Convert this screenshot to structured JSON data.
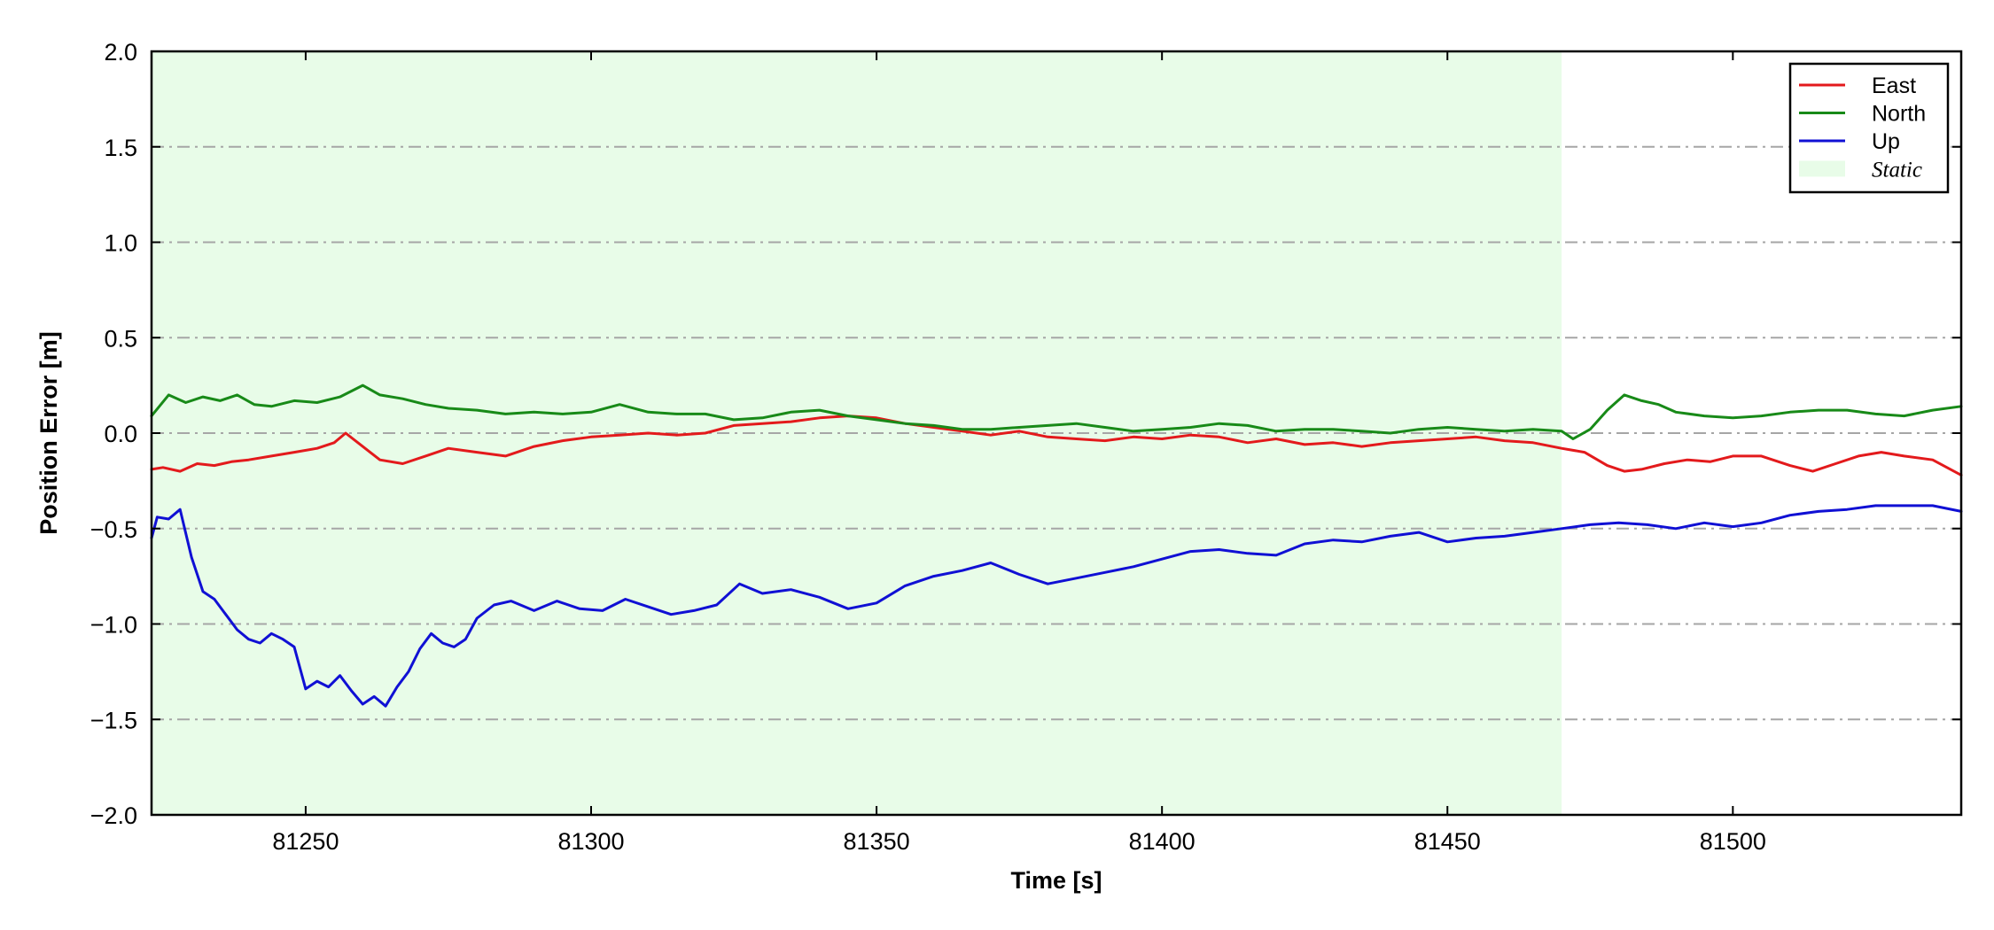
{
  "chart_data": {
    "type": "line",
    "xlabel": "Time [s]",
    "ylabel": "Position Error [m]",
    "xlim": [
      81223,
      81540
    ],
    "ylim": [
      -2.0,
      2.0
    ],
    "x_ticks": [
      81250,
      81300,
      81350,
      81400,
      81450,
      81500
    ],
    "x_tick_labels": [
      "81250",
      "81300",
      "81350",
      "81400",
      "81450",
      "81500"
    ],
    "y_ticks": [
      -2.0,
      -1.5,
      -1.0,
      -0.5,
      0.0,
      0.5,
      1.0,
      1.5,
      2.0
    ],
    "y_tick_labels": [
      "−2.0",
      "−1.5",
      "−1.0",
      "−0.5",
      "0.0",
      "0.5",
      "1.0",
      "1.5",
      "2.0"
    ],
    "grid": {
      "axis": "y",
      "style": "dash-dot",
      "color": "#a6a6a6"
    },
    "legend_placement": "top-right",
    "shaded_region": {
      "label": "Static",
      "x_start": 81223,
      "x_end": 81470,
      "color": "#e8fce8"
    },
    "series": [
      {
        "name": "East",
        "color": "#e31a1c",
        "x": [
          81223,
          81225,
          81228,
          81231,
          81234,
          81237,
          81240,
          81244,
          81248,
          81252,
          81255,
          81257,
          81260,
          81263,
          81267,
          81271,
          81275,
          81280,
          81285,
          81290,
          81295,
          81300,
          81305,
          81310,
          81315,
          81320,
          81325,
          81330,
          81335,
          81340,
          81345,
          81350,
          81355,
          81360,
          81365,
          81370,
          81375,
          81380,
          81385,
          81390,
          81395,
          81400,
          81405,
          81410,
          81415,
          81420,
          81425,
          81430,
          81435,
          81440,
          81445,
          81450,
          81455,
          81460,
          81465,
          81470,
          81474,
          81478,
          81481,
          81484,
          81488,
          81492,
          81496,
          81500,
          81505,
          81510,
          81514,
          81518,
          81522,
          81526,
          81530,
          81535,
          81540
        ],
        "y": [
          -0.19,
          -0.18,
          -0.2,
          -0.16,
          -0.17,
          -0.15,
          -0.14,
          -0.12,
          -0.1,
          -0.08,
          -0.05,
          0.0,
          -0.07,
          -0.14,
          -0.16,
          -0.12,
          -0.08,
          -0.1,
          -0.12,
          -0.07,
          -0.04,
          -0.02,
          -0.01,
          0.0,
          -0.01,
          0.0,
          0.04,
          0.05,
          0.06,
          0.08,
          0.09,
          0.08,
          0.05,
          0.03,
          0.01,
          -0.01,
          0.01,
          -0.02,
          -0.03,
          -0.04,
          -0.02,
          -0.03,
          -0.01,
          -0.02,
          -0.05,
          -0.03,
          -0.06,
          -0.05,
          -0.07,
          -0.05,
          -0.04,
          -0.03,
          -0.02,
          -0.04,
          -0.05,
          -0.08,
          -0.1,
          -0.17,
          -0.2,
          -0.19,
          -0.16,
          -0.14,
          -0.15,
          -0.12,
          -0.12,
          -0.17,
          -0.2,
          -0.16,
          -0.12,
          -0.1,
          -0.12,
          -0.14,
          -0.22
        ]
      },
      {
        "name": "North",
        "color": "#188a18",
        "x": [
          81223,
          81226,
          81229,
          81232,
          81235,
          81238,
          81241,
          81244,
          81248,
          81252,
          81256,
          81260,
          81263,
          81267,
          81271,
          81275,
          81280,
          81285,
          81290,
          81295,
          81300,
          81305,
          81310,
          81315,
          81320,
          81325,
          81330,
          81335,
          81340,
          81345,
          81350,
          81355,
          81360,
          81365,
          81370,
          81375,
          81380,
          81385,
          81390,
          81395,
          81400,
          81405,
          81410,
          81415,
          81420,
          81425,
          81430,
          81435,
          81440,
          81445,
          81450,
          81455,
          81460,
          81465,
          81470,
          81472,
          81475,
          81478,
          81481,
          81484,
          81487,
          81490,
          81495,
          81500,
          81505,
          81510,
          81515,
          81520,
          81525,
          81530,
          81535,
          81540
        ],
        "y": [
          0.09,
          0.2,
          0.16,
          0.19,
          0.17,
          0.2,
          0.15,
          0.14,
          0.17,
          0.16,
          0.19,
          0.25,
          0.2,
          0.18,
          0.15,
          0.13,
          0.12,
          0.1,
          0.11,
          0.1,
          0.11,
          0.15,
          0.11,
          0.1,
          0.1,
          0.07,
          0.08,
          0.11,
          0.12,
          0.09,
          0.07,
          0.05,
          0.04,
          0.02,
          0.02,
          0.03,
          0.04,
          0.05,
          0.03,
          0.01,
          0.02,
          0.03,
          0.05,
          0.04,
          0.01,
          0.02,
          0.02,
          0.01,
          0.0,
          0.02,
          0.03,
          0.02,
          0.01,
          0.02,
          0.01,
          -0.03,
          0.02,
          0.12,
          0.2,
          0.17,
          0.15,
          0.11,
          0.09,
          0.08,
          0.09,
          0.11,
          0.12,
          0.12,
          0.1,
          0.09,
          0.12,
          0.14
        ]
      },
      {
        "name": "Up",
        "color": "#1010d4",
        "x": [
          81223,
          81224,
          81226,
          81228,
          81230,
          81232,
          81234,
          81236,
          81238,
          81240,
          81242,
          81244,
          81246,
          81248,
          81250,
          81252,
          81254,
          81256,
          81258,
          81260,
          81262,
          81264,
          81266,
          81268,
          81270,
          81272,
          81274,
          81276,
          81278,
          81280,
          81283,
          81286,
          81290,
          81294,
          81298,
          81302,
          81306,
          81310,
          81314,
          81318,
          81322,
          81326,
          81330,
          81335,
          81340,
          81345,
          81350,
          81355,
          81360,
          81365,
          81370,
          81375,
          81380,
          81385,
          81390,
          81395,
          81400,
          81405,
          81410,
          81415,
          81420,
          81425,
          81430,
          81435,
          81440,
          81445,
          81450,
          81455,
          81460,
          81465,
          81470,
          81475,
          81480,
          81485,
          81490,
          81495,
          81500,
          81505,
          81510,
          81515,
          81520,
          81525,
          81530,
          81535,
          81540
        ],
        "y": [
          -0.55,
          -0.44,
          -0.45,
          -0.4,
          -0.65,
          -0.83,
          -0.87,
          -0.95,
          -1.03,
          -1.08,
          -1.1,
          -1.05,
          -1.08,
          -1.12,
          -1.34,
          -1.3,
          -1.33,
          -1.27,
          -1.35,
          -1.42,
          -1.38,
          -1.43,
          -1.33,
          -1.25,
          -1.13,
          -1.05,
          -1.1,
          -1.12,
          -1.08,
          -0.97,
          -0.9,
          -0.88,
          -0.93,
          -0.88,
          -0.92,
          -0.93,
          -0.87,
          -0.91,
          -0.95,
          -0.93,
          -0.9,
          -0.79,
          -0.84,
          -0.82,
          -0.86,
          -0.92,
          -0.89,
          -0.8,
          -0.75,
          -0.72,
          -0.68,
          -0.74,
          -0.79,
          -0.76,
          -0.73,
          -0.7,
          -0.66,
          -0.62,
          -0.61,
          -0.63,
          -0.64,
          -0.58,
          -0.56,
          -0.57,
          -0.54,
          -0.52,
          -0.57,
          -0.55,
          -0.54,
          -0.52,
          -0.5,
          -0.48,
          -0.47,
          -0.48,
          -0.5,
          -0.47,
          -0.49,
          -0.47,
          -0.43,
          -0.41,
          -0.4,
          -0.38,
          -0.38,
          -0.38,
          -0.41
        ]
      }
    ],
    "legend": {
      "entries": [
        {
          "label": "East",
          "kind": "line",
          "color": "#e31a1c"
        },
        {
          "label": "North",
          "kind": "line",
          "color": "#188a18"
        },
        {
          "label": "Up",
          "kind": "line",
          "color": "#1010d4"
        },
        {
          "label": "Static",
          "kind": "patch",
          "color": "#e8fce8"
        }
      ]
    }
  }
}
